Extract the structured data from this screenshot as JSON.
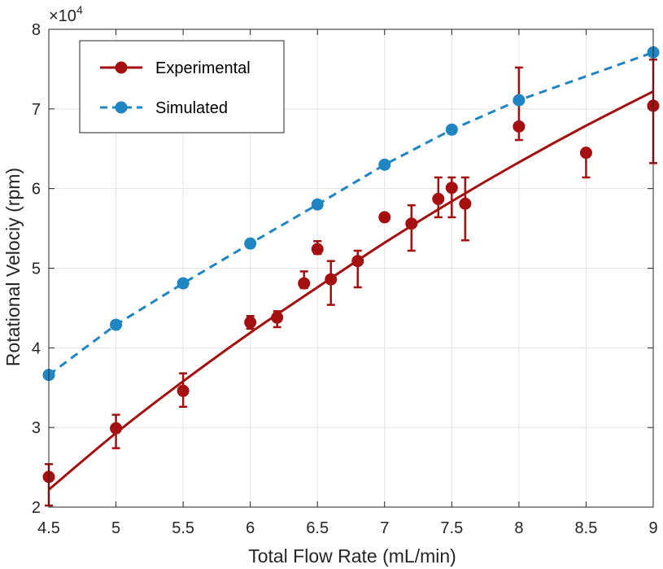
{
  "chart_data": {
    "type": "scatter",
    "xlabel": "Total Flow Rate (mL/min)",
    "ylabel": "Rotational Velociy (rpm)",
    "y_exponent_label": "×10",
    "y_exponent_power": "4",
    "xlim": [
      4.5,
      9
    ],
    "ylim": [
      2,
      8
    ],
    "x_ticks": [
      "4.5",
      "5",
      "5.5",
      "6",
      "6.5",
      "7",
      "7.5",
      "8",
      "8.5",
      "9"
    ],
    "y_ticks": [
      "2",
      "3",
      "4",
      "5",
      "6",
      "7",
      "8"
    ],
    "grid": true,
    "legend_position": "top-left",
    "series": [
      {
        "name": "Experimental",
        "color": "#a50f0f",
        "style": "solid-line-with-markers",
        "points": [
          {
            "x": 4.5,
            "y": 2.38,
            "lo": 2.02,
            "hi": 2.54
          },
          {
            "x": 5.0,
            "y": 2.99,
            "lo": 2.74,
            "hi": 3.16
          },
          {
            "x": 5.5,
            "y": 3.46,
            "lo": 3.26,
            "hi": 3.68
          },
          {
            "x": 6.0,
            "y": 4.32,
            "lo": 4.24,
            "hi": 4.4
          },
          {
            "x": 6.2,
            "y": 4.38,
            "lo": 4.26,
            "hi": 4.46
          },
          {
            "x": 6.4,
            "y": 4.81,
            "lo": 4.75,
            "hi": 4.96
          },
          {
            "x": 6.5,
            "y": 5.24,
            "lo": 5.18,
            "hi": 5.34
          },
          {
            "x": 6.6,
            "y": 4.86,
            "lo": 4.54,
            "hi": 5.09
          },
          {
            "x": 6.8,
            "y": 5.09,
            "lo": 4.76,
            "hi": 5.22
          },
          {
            "x": 7.0,
            "y": 5.64,
            "lo": null,
            "hi": null
          },
          {
            "x": 7.2,
            "y": 5.56,
            "lo": 5.22,
            "hi": 5.79
          },
          {
            "x": 7.4,
            "y": 5.87,
            "lo": 5.64,
            "hi": 6.14
          },
          {
            "x": 7.5,
            "y": 6.01,
            "lo": 5.64,
            "hi": 6.14
          },
          {
            "x": 7.6,
            "y": 5.81,
            "lo": 5.35,
            "hi": 6.14
          },
          {
            "x": 8.0,
            "y": 6.78,
            "lo": 6.61,
            "hi": 7.52
          },
          {
            "x": 8.5,
            "y": 6.45,
            "lo": 6.14,
            "hi": 6.49
          },
          {
            "x": 9.0,
            "y": 7.04,
            "lo": 6.32,
            "hi": 7.62
          }
        ],
        "fit_curve": [
          [
            4.5,
            2.22
          ],
          [
            5.0,
            2.93
          ],
          [
            5.5,
            3.58
          ],
          [
            6.0,
            4.19
          ],
          [
            6.5,
            4.76
          ],
          [
            7.0,
            5.32
          ],
          [
            7.5,
            5.84
          ],
          [
            8.0,
            6.33
          ],
          [
            8.5,
            6.79
          ],
          [
            9.0,
            7.22
          ]
        ]
      },
      {
        "name": "Simulated",
        "color": "#1f85c3",
        "style": "dashed-line-with-markers",
        "points": [
          {
            "x": 4.5,
            "y": 3.66
          },
          {
            "x": 5.0,
            "y": 4.29
          },
          {
            "x": 5.5,
            "y": 4.81
          },
          {
            "x": 6.0,
            "y": 5.31
          },
          {
            "x": 6.5,
            "y": 5.8
          },
          {
            "x": 7.0,
            "y": 6.3
          },
          {
            "x": 7.5,
            "y": 6.74
          },
          {
            "x": 8.0,
            "y": 7.11
          },
          {
            "x": 9.0,
            "y": 7.71
          }
        ]
      }
    ]
  }
}
